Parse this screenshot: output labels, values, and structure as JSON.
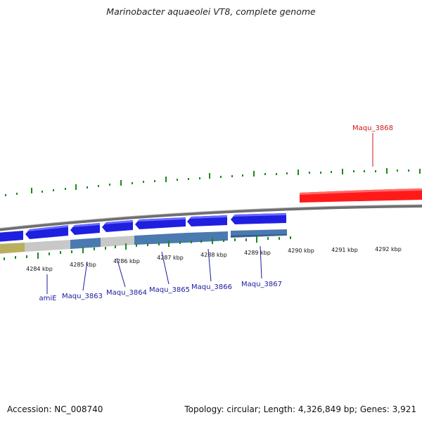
{
  "header": {
    "title": "Marinobacter aquaeolei VT8, complete genome"
  },
  "footer": {
    "accession": "Accession: NC_008740",
    "summary": "Topology: circular; Length: 4,326,849 bp; Genes: 3,921"
  },
  "scale": {
    "labels": [
      "4284 kbp",
      "4285 kbp",
      "4286 kbp",
      "4287 kbp",
      "4288 kbp",
      "4289 kbp",
      "4290 kbp",
      "4291 kbp",
      "4292 kbp"
    ]
  },
  "genes": {
    "amiE": "amiE",
    "maqu_3863": "Maqu_3863",
    "maqu_3864": "Maqu_3864",
    "maqu_3865": "Maqu_3865",
    "maqu_3866": "Maqu_3866",
    "maqu_3867": "Maqu_3867",
    "maqu_3868": "Maqu_3868"
  },
  "colors": {
    "gene_forward": "#1f1fe0",
    "gene_highlight": "#ff1a1a",
    "backbone": "#808080",
    "tick_green": "#1a8a1a",
    "label_blue": "#1a1aa0",
    "label_red": "#cc1a1a",
    "track_gray": "#c8c8c8",
    "track_steel": "#4a7ab0",
    "track_olive": "#b8b060"
  }
}
